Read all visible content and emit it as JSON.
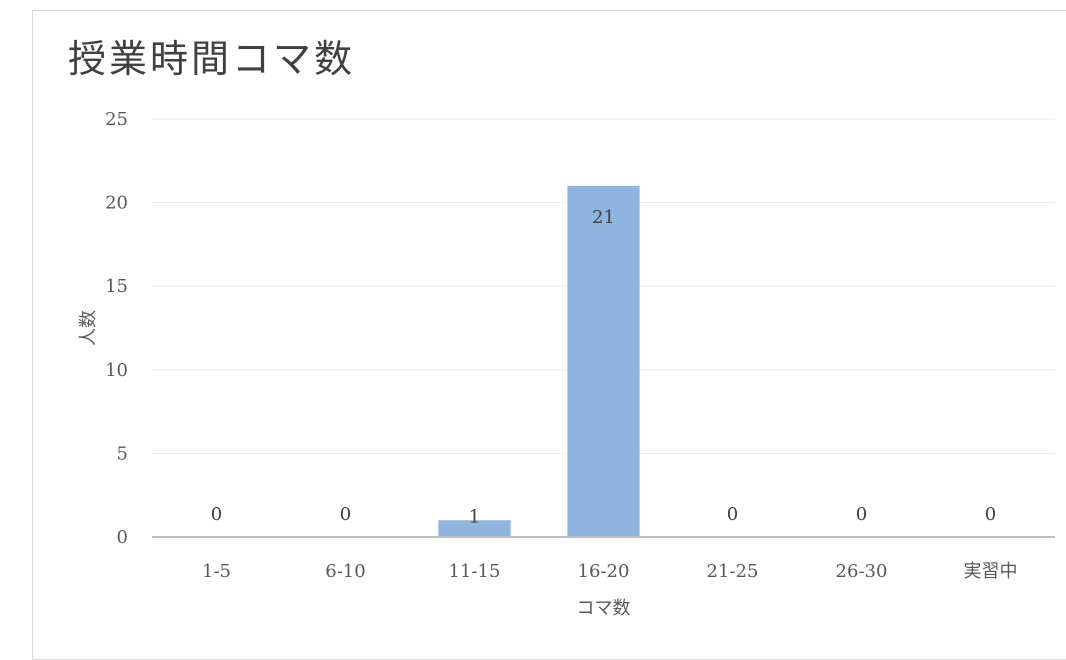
{
  "chart_data": {
    "type": "bar",
    "title": "授業時間コマ数",
    "xlabel": "コマ数",
    "ylabel": "人数",
    "categories": [
      "1-5",
      "6-10",
      "11-15",
      "16-20",
      "21-25",
      "26-30",
      "実習中"
    ],
    "values": [
      0,
      0,
      1,
      21,
      0,
      0,
      0
    ],
    "ylim": [
      0,
      25
    ],
    "yticks": [
      0,
      5,
      10,
      15,
      20,
      25
    ],
    "grid": true,
    "legend": "none",
    "data_labels": true,
    "colors": {
      "bar": "#8db5e0",
      "grid": "#eaeaea",
      "axis": "#bfbfbf"
    }
  }
}
